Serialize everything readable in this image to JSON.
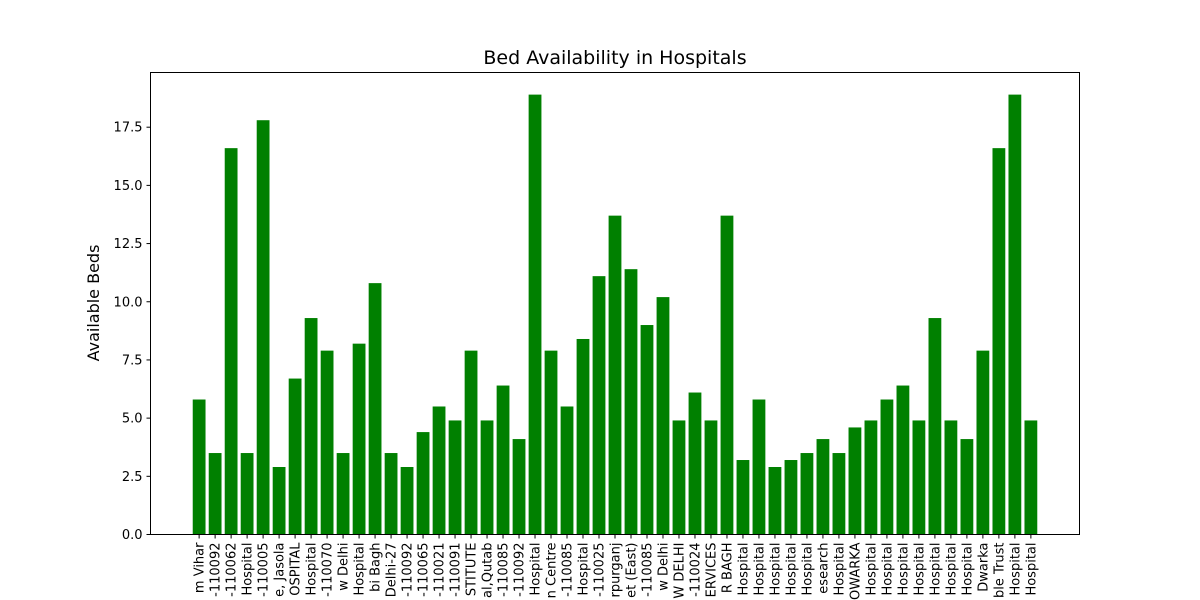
{
  "chart_data": {
    "type": "bar",
    "title": "Bed Availability in Hospitals",
    "xlabel": "",
    "ylabel": "Available Beds",
    "ylim": [
      0,
      19.85
    ],
    "yticks": [
      "0.0",
      "2.5",
      "5.0",
      "7.5",
      "10.0",
      "12.5",
      "15.0",
      "17.5"
    ],
    "grid": false,
    "bar_color": "#008000",
    "categories": [
      "m Vihar",
      "-110092",
      "-110062",
      "Hospital",
      "-110005",
      "e, Jasola",
      "OSPITAL",
      "Hospital",
      "-110070",
      "w Delhi",
      "Hospital",
      "bi Bagh",
      "Delhi-27",
      "-110092",
      "-110065",
      "-110021",
      "-110091",
      "STITUTE",
      "al,Qutab",
      "-110085",
      "-110092",
      "Hospital",
      "n Centre",
      "-110085",
      "Hospital",
      "-110025",
      "rpurganj",
      "et (East)",
      "-110085",
      "w Delhi",
      "W DELHI",
      "-110024",
      "ERVICES",
      "R BAGH",
      "Hospital",
      "Hospital",
      "Hospital",
      "Hospital",
      "Hospital",
      "esearch",
      "Hospital",
      "OWARKA",
      "Hospital",
      "Hospital",
      "Hospital",
      "Hospital",
      "Hospital",
      "Hospital",
      "Hospital",
      "Dwarka",
      "ble Trust",
      "Hospital",
      "Hospital"
    ],
    "values": [
      5.8,
      3.5,
      16.6,
      3.5,
      17.8,
      2.9,
      6.7,
      9.3,
      7.9,
      3.5,
      8.2,
      10.8,
      3.5,
      2.9,
      4.4,
      5.5,
      4.9,
      7.9,
      4.9,
      6.4,
      4.1,
      18.9,
      7.9,
      5.5,
      8.4,
      11.1,
      13.7,
      11.4,
      9.0,
      10.2,
      4.9,
      6.1,
      4.9,
      13.7,
      3.2,
      5.8,
      2.9,
      3.2,
      3.5,
      4.1,
      3.5,
      4.6,
      4.9,
      5.8,
      6.4,
      4.9,
      9.3,
      4.9,
      4.1,
      7.9,
      16.6,
      18.9,
      4.9
    ]
  }
}
